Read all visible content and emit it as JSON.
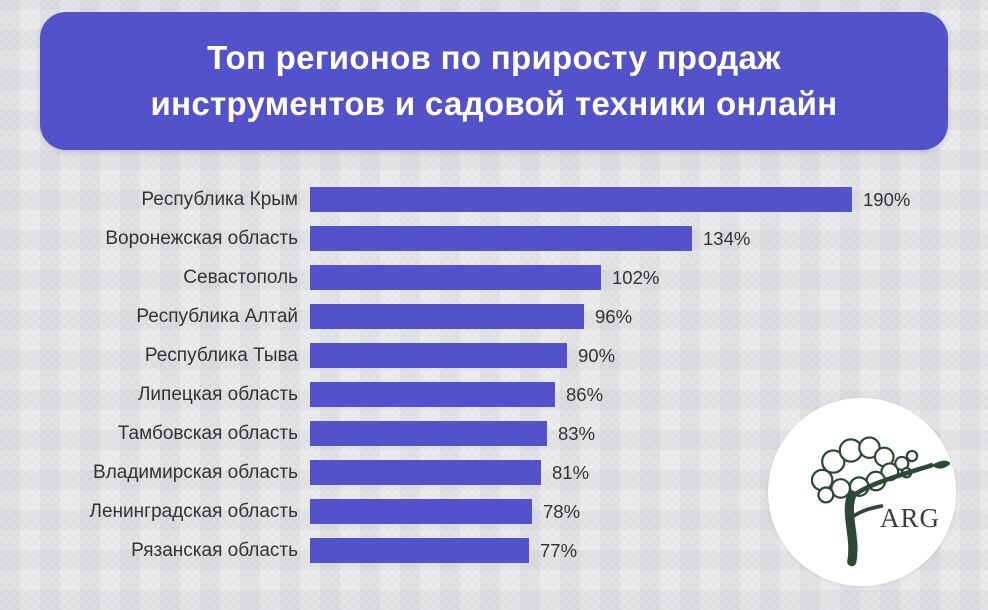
{
  "header": {
    "title_lines": [
      "Топ регионов по приросту продаж",
      "инструментов и садовой техники онлайн"
    ]
  },
  "chart_data": {
    "type": "bar",
    "orientation": "horizontal",
    "title": "Топ регионов по приросту продаж инструментов и садовой техники онлайн",
    "categories": [
      "Республика Крым",
      "Воронежская область",
      "Севастополь",
      "Республика Алтай",
      "Республика Тыва",
      "Липецкая область",
      "Тамбовская область",
      "Владимирская область",
      "Ленинградская область",
      "Рязанская область"
    ],
    "values": [
      190,
      134,
      102,
      96,
      90,
      86,
      83,
      81,
      78,
      77
    ],
    "value_suffix": "%",
    "xlabel": "",
    "ylabel": "",
    "xlim": [
      0,
      200
    ],
    "grid": false,
    "legend": "none",
    "bar_color": "#5352cb"
  },
  "logo": {
    "text": "ARG"
  },
  "colors": {
    "accent": "#5352cb",
    "banner": "#5352cb",
    "background": "#ebebed",
    "text": "#333333",
    "logo_green": "#2c4a33"
  }
}
